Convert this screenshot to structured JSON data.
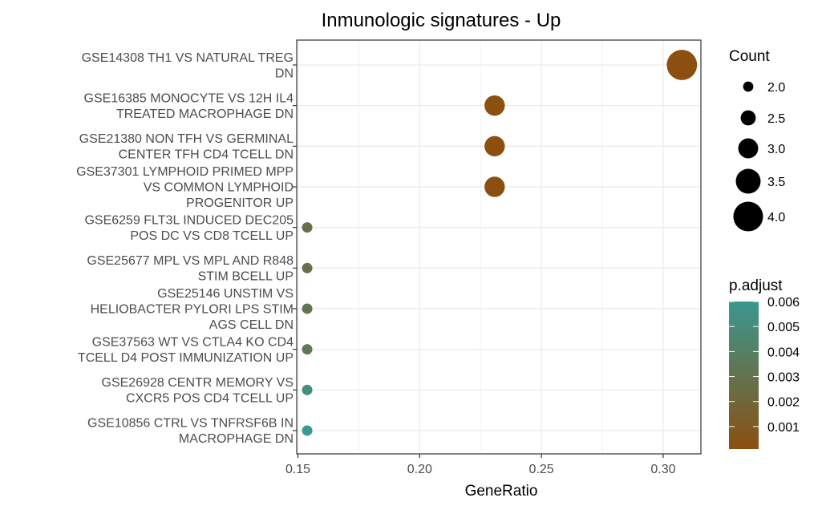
{
  "chart_data": {
    "type": "scatter",
    "title": "Inmunologic signatures - Up",
    "xlabel": "GeneRatio",
    "ylabel": "",
    "xlim": [
      0.1495,
      0.3155
    ],
    "x_ticks": [
      "0.15",
      "0.20",
      "0.25",
      "0.30"
    ],
    "x_tick_values": [
      0.15,
      0.2,
      0.25,
      0.3
    ],
    "grid": true,
    "categories": [
      [
        "GSE14308 TH1 VS NATURAL TREG",
        "DN"
      ],
      [
        "GSE16385 MONOCYTE VS 12H IL4",
        "TREATED MACROPHAGE DN"
      ],
      [
        "GSE21380 NON TFH VS GERMINAL",
        "CENTER TFH CD4 TCELL DN"
      ],
      [
        "GSE37301 LYMPHOID PRIMED MPP",
        "VS COMMON LYMPHOID",
        "PROGENITOR UP"
      ],
      [
        "GSE6259 FLT3L INDUCED DEC205",
        "POS DC VS CD8 TCELL UP"
      ],
      [
        "GSE25677 MPL VS MPL AND R848",
        "STIM BCELL UP"
      ],
      [
        "GSE25146 UNSTIM VS",
        "HELIOBACTER PYLORI LPS STIM",
        "AGS CELL DN"
      ],
      [
        "GSE37563 WT VS CTLA4 KO CD4",
        "TCELL D4 POST IMMUNIZATION UP"
      ],
      [
        "GSE26928 CENTR MEMORY VS",
        "CXCR5 POS CD4 TCELL UP"
      ],
      [
        "GSE10856 CTRL VS TNFRSF6B IN",
        "MACROPHAGE DN"
      ]
    ],
    "x": [
      0.3077,
      0.2308,
      0.2308,
      0.2308,
      0.1538,
      0.1538,
      0.1538,
      0.1538,
      0.1538,
      0.1538
    ],
    "count": [
      4,
      3,
      3,
      3,
      2,
      2,
      2,
      2,
      2,
      2
    ],
    "p_adjust": [
      0.0001,
      0.0001,
      0.0001,
      0.0001,
      0.0026,
      0.0028,
      0.0031,
      0.0034,
      0.0052,
      0.006
    ],
    "size_legend": {
      "title": "Count",
      "labels": [
        "2.0",
        "2.5",
        "3.0",
        "3.5",
        "4.0"
      ],
      "values": [
        2.0,
        2.5,
        3.0,
        3.5,
        4.0
      ]
    },
    "color_legend": {
      "title": "p.adjust",
      "labels": [
        "0.006",
        "0.005",
        "0.004",
        "0.003",
        "0.002",
        "0.001"
      ],
      "values": [
        0.006,
        0.005,
        0.004,
        0.003,
        0.002,
        0.001
      ],
      "low_color": "#8b4f10",
      "high_color": "#3a9890"
    },
    "legend_position": "right"
  }
}
